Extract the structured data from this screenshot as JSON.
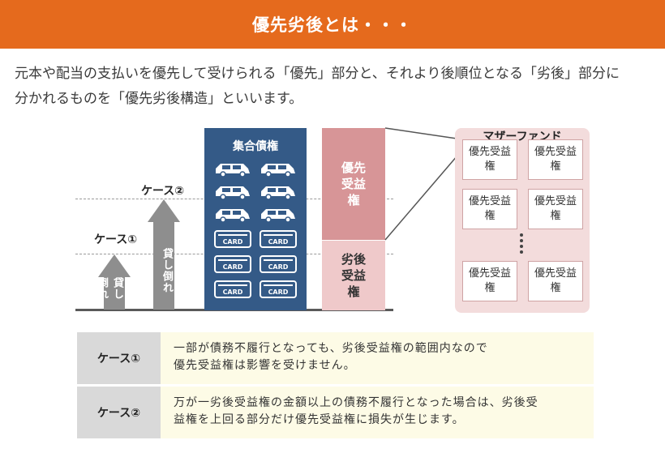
{
  "header": {
    "title": "優先劣後とは・・・"
  },
  "intro": {
    "line1": "元本や配当の支払いを優先して受けられる「優先」部分と、それより後順位となる「劣後」部分に",
    "line2": "分かれるものを「優先劣後構造」といいます。"
  },
  "diagram": {
    "case1_label": "ケース①",
    "case2_label": "ケース②",
    "arrow_text": "貸し倒れ",
    "pool_title": "集合債権",
    "card_text": "CARD",
    "senior_label": "優先受益権",
    "junior_label": "劣後受益権",
    "mother_fund_title": "マザーファンド",
    "mini_label": "優先受益権"
  },
  "cases": [
    {
      "label": "ケース①",
      "line1": "一部が債務不履行となっても、劣後受益権の範囲内なので",
      "line2": "優先受益権は影響を受けません。"
    },
    {
      "label": "ケース②",
      "line1": "万が一劣後受益権の金額以上の債務不履行となった場合は、劣後受",
      "line2": "益権を上回る部分だけ優先受益権に損失が生じます。"
    }
  ],
  "colors": {
    "header": "#e56a1d",
    "pool": "#345a87",
    "senior": "#d79597",
    "junior": "#efc9ca",
    "mother_fund": "#f3dcdc",
    "arrow": "#8e8e8e"
  }
}
